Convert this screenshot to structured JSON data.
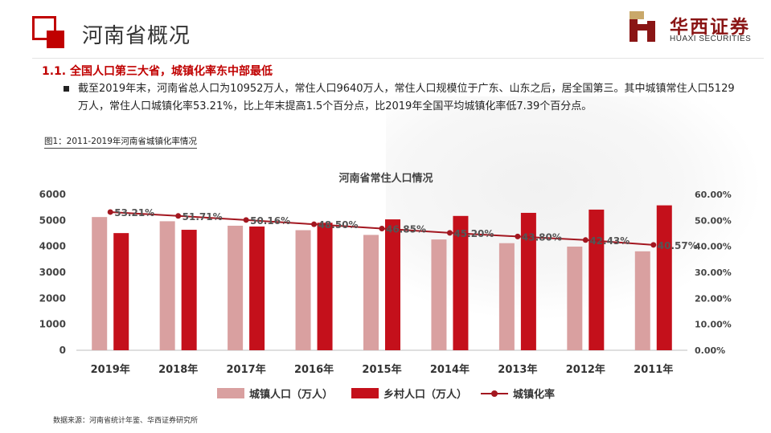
{
  "header": {
    "page_title": "河南省概况",
    "brand_name": "华西证券",
    "brand_english": "HUAXI SECURITIES"
  },
  "section": {
    "heading": "1.1. 全国人口第三大省，城镇化率东中部最低",
    "bullet_text": "截至2019年末，河南省总人口为10952万人，常住人口9640万人，常住人口规模位于广东、山东之后，居全国第三。其中城镇常住人口5129万人，常住人口城镇化率53.21%，比上年末提高1.5个百分点，比2019年全国平均城镇化率低7.39个百分点。",
    "figure_caption": "图1：2011-2019年河南省城镇化率情况",
    "source_note": "数据来源：河南省统计年鉴、华西证券研究所"
  },
  "legend": {
    "urban": "城镇人口（万人）",
    "rural": "乡村人口（万人）",
    "rate": "城镇化率"
  },
  "colors": {
    "accent": "#c00000",
    "urban_bar": "#d9a0a0",
    "rural_bar": "#c4101b",
    "rate_line": "#a31720"
  },
  "chart_data": {
    "type": "bar",
    "title": "河南省常住人口情况",
    "categories": [
      "2019年",
      "2018年",
      "2017年",
      "2016年",
      "2015年",
      "2014年",
      "2013年",
      "2012年",
      "2011年"
    ],
    "series": [
      {
        "name": "城镇人口（万人）",
        "type": "bar",
        "axis": "left",
        "values": [
          5129,
          4967,
          4795,
          4623,
          4441,
          4265,
          4123,
          3991,
          3809
        ]
      },
      {
        "name": "乡村人口（万人）",
        "type": "bar",
        "axis": "left",
        "values": [
          4511,
          4638,
          4764,
          4909,
          5039,
          5171,
          5290,
          5415,
          5579
        ]
      },
      {
        "name": "城镇化率",
        "type": "line",
        "axis": "right",
        "values": [
          53.21,
          51.71,
          50.16,
          48.5,
          46.85,
          45.2,
          43.8,
          42.43,
          40.57
        ],
        "labels": [
          "53.21%",
          "51.71%",
          "50.16%",
          "48.50%",
          "46.85%",
          "45.20%",
          "43.80%",
          "42.43%",
          "40.57%"
        ]
      }
    ],
    "y_left": {
      "min": 0,
      "max": 6000,
      "ticks": [
        0,
        1000,
        2000,
        3000,
        4000,
        5000,
        6000
      ]
    },
    "y_right": {
      "min": 0,
      "max": 60,
      "ticks": [
        "0.00%",
        "10.00%",
        "20.00%",
        "30.00%",
        "40.00%",
        "50.00%",
        "60.00%"
      ]
    },
    "grid": false,
    "legend_position": "bottom"
  }
}
